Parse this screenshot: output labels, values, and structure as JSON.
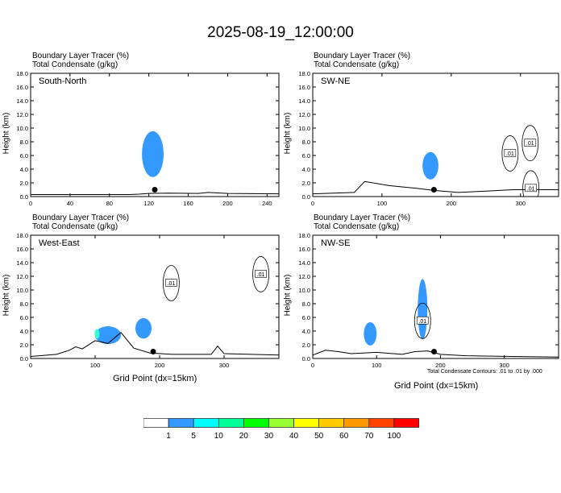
{
  "title": "2025-08-19_12:00:00",
  "panel_header": [
    "Boundary Layer Tracer   (%)",
    "Total Condensate   (g/kg)"
  ],
  "ylabel": "Height (km)",
  "xlabel": "Grid Point (dx=15km)",
  "contour_note": "Total Condensate Contours: .01 to .01 by .000",
  "colors": {
    "tracer_main": "#3399ff",
    "tracer_aqua": "#33ffcc",
    "contour": "#000000"
  },
  "colorbar": {
    "colors": [
      "#ffffff",
      "#3399ff",
      "#00ffff",
      "#00ff99",
      "#00ff00",
      "#99ff33",
      "#ffff00",
      "#ffcc00",
      "#ff9900",
      "#ff4400",
      "#ff0000"
    ],
    "labels": [
      "1",
      "5",
      "10",
      "20",
      "30",
      "40",
      "50",
      "60",
      "70",
      "100"
    ]
  },
  "chart_data": [
    {
      "type": "heatmap",
      "name": "South-North",
      "xlim": [
        0,
        252
      ],
      "ylim": [
        0,
        18
      ],
      "xticks": [
        0,
        40,
        80,
        120,
        160,
        200,
        240
      ],
      "yticks": [
        "0.0",
        "2.0",
        "4.0",
        "6.0",
        "8.0",
        "10.0",
        "12.0",
        "14.0",
        "16.0",
        "18.0"
      ],
      "point_marker": {
        "x": 126,
        "y": 1.0
      },
      "terrain": [
        [
          0,
          0.3
        ],
        [
          100,
          0.3
        ],
        [
          110,
          0.35
        ],
        [
          120,
          0.45
        ],
        [
          140,
          0.5
        ],
        [
          170,
          0.45
        ],
        [
          180,
          0.6
        ],
        [
          200,
          0.45
        ],
        [
          252,
          0.4
        ]
      ],
      "tracer_regions": [
        {
          "x_center": 124,
          "y_center": 6.2,
          "x_extent": [
            112,
            134
          ],
          "y_extent": [
            3.6,
            10.3
          ]
        }
      ],
      "contour_labels": []
    },
    {
      "type": "heatmap",
      "name": "SW-NE",
      "xlim": [
        0,
        355
      ],
      "ylim": [
        0,
        18
      ],
      "xticks": [
        0,
        100,
        200,
        300
      ],
      "yticks": [
        "0.0",
        "2.0",
        "4.0",
        "6.0",
        "8.0",
        "10.0",
        "12.0",
        "14.0",
        "16.0",
        "18.0"
      ],
      "point_marker": {
        "x": 175,
        "y": 1.0
      },
      "terrain": [
        [
          0,
          0.4
        ],
        [
          60,
          0.6
        ],
        [
          75,
          2.2
        ],
        [
          110,
          1.6
        ],
        [
          150,
          1.2
        ],
        [
          175,
          0.9
        ],
        [
          210,
          0.6
        ],
        [
          250,
          0.8
        ],
        [
          290,
          1.0
        ],
        [
          355,
          1.0
        ]
      ],
      "tracer_regions": [
        {
          "x_center": 170,
          "y_center": 4.5,
          "x_extent": [
            160,
            183
          ],
          "y_extent": [
            2.8,
            6.8
          ]
        }
      ],
      "contour_labels": [
        {
          "text": ".01",
          "x": 285,
          "y": 6.3
        },
        {
          "text": ".01",
          "x": 314,
          "y": 7.8
        },
        {
          "text": ".01",
          "x": 315,
          "y": 1.2
        }
      ]
    },
    {
      "type": "heatmap",
      "name": "West-East",
      "xlim": [
        0,
        385
      ],
      "ylim": [
        0,
        18
      ],
      "xticks": [
        0,
        100,
        200,
        300
      ],
      "yticks": [
        "0.0",
        "2.0",
        "4.0",
        "6.0",
        "8.0",
        "10.0",
        "12.0",
        "14.0",
        "16.0",
        "18.0"
      ],
      "point_marker": {
        "x": 190,
        "y": 1.0
      },
      "terrain": [
        [
          0,
          0.3
        ],
        [
          40,
          0.6
        ],
        [
          60,
          1.2
        ],
        [
          70,
          1.7
        ],
        [
          80,
          1.4
        ],
        [
          100,
          2.6
        ],
        [
          120,
          2.2
        ],
        [
          140,
          3.8
        ],
        [
          160,
          1.5
        ],
        [
          185,
          0.8
        ],
        [
          220,
          0.6
        ],
        [
          280,
          0.6
        ],
        [
          290,
          1.8
        ],
        [
          300,
          0.7
        ],
        [
          385,
          0.5
        ]
      ],
      "tracer_regions": [
        {
          "x_center": 120,
          "y_center": 3.4,
          "x_extent": [
            100,
            140
          ],
          "y_extent": [
            2.0,
            4.6
          ]
        },
        {
          "x_center": 175,
          "y_center": 4.4,
          "x_extent": [
            165,
            190
          ],
          "y_extent": [
            2.5,
            5.5
          ]
        }
      ],
      "contour_labels": [
        {
          "text": ".01",
          "x": 218,
          "y": 11.0
        },
        {
          "text": ".01",
          "x": 357,
          "y": 12.3
        }
      ]
    },
    {
      "type": "heatmap",
      "name": "NW-SE",
      "xlim": [
        0,
        385
      ],
      "ylim": [
        0,
        18
      ],
      "xticks": [
        0,
        100,
        200,
        300
      ],
      "yticks": [
        "0.0",
        "2.0",
        "4.0",
        "6.0",
        "8.0",
        "10.0",
        "12.0",
        "14.0",
        "16.0",
        "18.0"
      ],
      "point_marker": {
        "x": 190,
        "y": 1.0
      },
      "terrain": [
        [
          0,
          0.5
        ],
        [
          20,
          1.2
        ],
        [
          40,
          1.0
        ],
        [
          60,
          0.7
        ],
        [
          100,
          0.9
        ],
        [
          140,
          0.6
        ],
        [
          160,
          1.0
        ],
        [
          180,
          1.1
        ],
        [
          200,
          0.6
        ],
        [
          240,
          0.4
        ],
        [
          385,
          0.2
        ]
      ],
      "tracer_regions": [
        {
          "x_center": 90,
          "y_center": 3.6,
          "x_extent": [
            80,
            100
          ],
          "y_extent": [
            1.8,
            5.2
          ]
        },
        {
          "x_center": 172,
          "y_center": 7.2,
          "x_extent": [
            165,
            180
          ],
          "y_extent": [
            3.0,
            11.8
          ]
        }
      ],
      "contour_labels": [
        {
          "text": ".01",
          "x": 172,
          "y": 5.5
        }
      ]
    }
  ]
}
